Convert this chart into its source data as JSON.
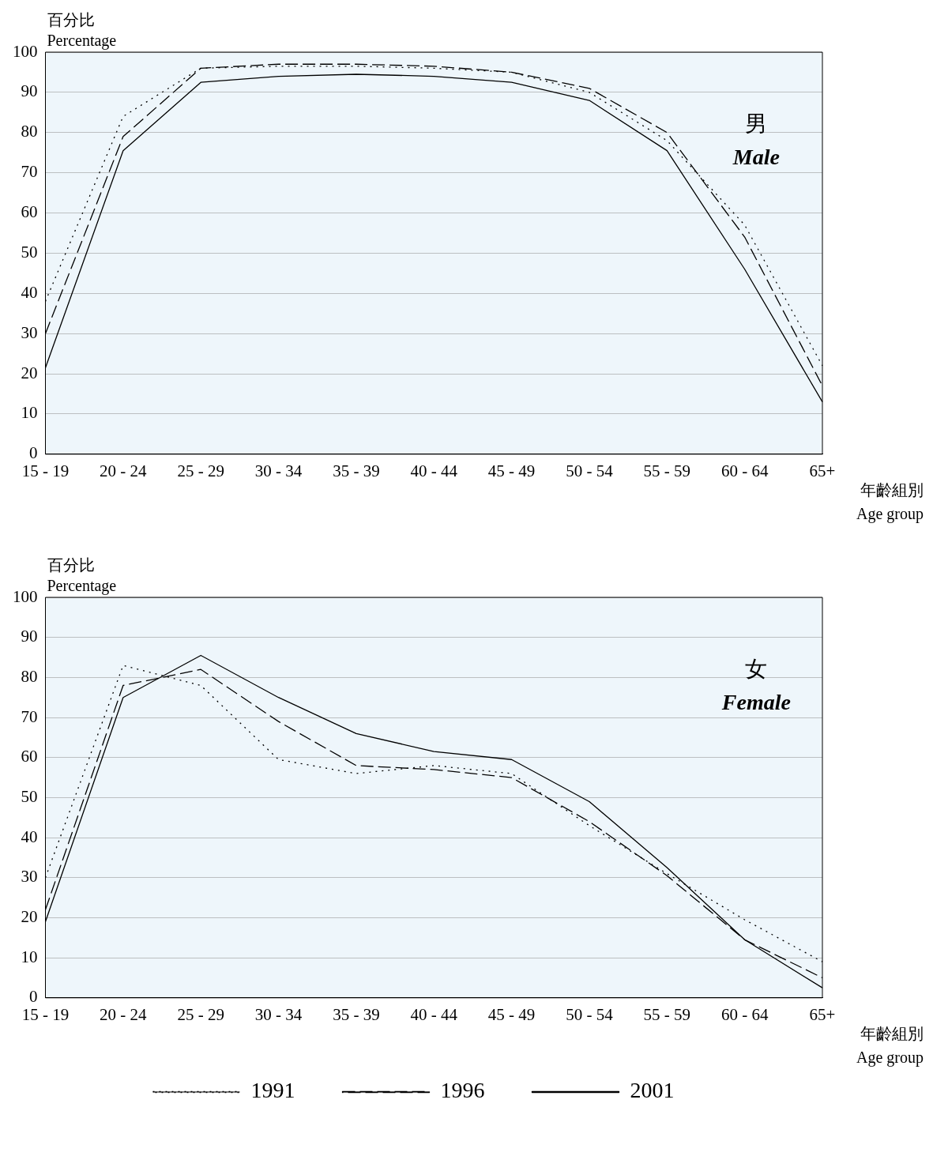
{
  "chart_data": [
    {
      "type": "line",
      "ylabel": "百分比\nPercentage",
      "xlabel": "年齡組別\nAge group",
      "annotations": [
        "男",
        "Male"
      ],
      "categories": [
        "15 - 19",
        "20 - 24",
        "25 - 29",
        "30 - 34",
        "35 - 39",
        "40 - 44",
        "45 - 49",
        "50 - 54",
        "55 - 59",
        "60 - 64",
        "65+"
      ],
      "series": [
        {
          "color": "#000000",
          "line_style": "dotted",
          "values": [
            38,
            84,
            96,
            96.5,
            96.5,
            96,
            95,
            90,
            78,
            57,
            22
          ]
        },
        {
          "color": "#000000",
          "line_style": "dashed",
          "values": [
            30,
            79,
            96,
            97,
            97,
            96.5,
            95,
            91,
            80,
            54,
            17
          ]
        },
        {
          "color": "#000000",
          "line_style": "solid",
          "values": [
            21.5,
            75.5,
            92.5,
            94,
            94.5,
            94,
            92.5,
            88,
            75.5,
            46,
            13
          ]
        }
      ],
      "ylim": [
        0,
        100
      ],
      "yticks": [
        0,
        10,
        20,
        30,
        40,
        50,
        60,
        70,
        80,
        90,
        100
      ],
      "grid": "y",
      "legend": false
    },
    {
      "type": "line",
      "ylabel": "百分比\nPercentage",
      "xlabel": "年齡組別\nAge group",
      "annotations": [
        "女",
        "Female"
      ],
      "categories": [
        "15 - 19",
        "20 - 24",
        "25 - 29",
        "30 - 34",
        "35 - 39",
        "40 - 44",
        "45 - 49",
        "50 - 54",
        "55 - 59",
        "60 - 64",
        "65+"
      ],
      "series": [
        {
          "name": "1991",
          "color": "#000000",
          "line_style": "dotted",
          "values": [
            30,
            83,
            78,
            59.5,
            56,
            58,
            56,
            43,
            31,
            19.5,
            9
          ]
        },
        {
          "name": "1996",
          "color": "#000000",
          "line_style": "dashed",
          "values": [
            22,
            78,
            82,
            69,
            58,
            57,
            55,
            44,
            30.5,
            14.5,
            5
          ]
        },
        {
          "name": "2001",
          "color": "#000000",
          "line_style": "solid",
          "values": [
            19,
            75,
            85.5,
            75,
            66,
            61.5,
            59.5,
            49,
            32.5,
            14.5,
            2.5
          ]
        }
      ],
      "ylim": [
        0,
        100
      ],
      "yticks": [
        0,
        10,
        20,
        30,
        40,
        50,
        60,
        70,
        80,
        90,
        100
      ],
      "grid": "y",
      "legend": "bottom"
    }
  ]
}
